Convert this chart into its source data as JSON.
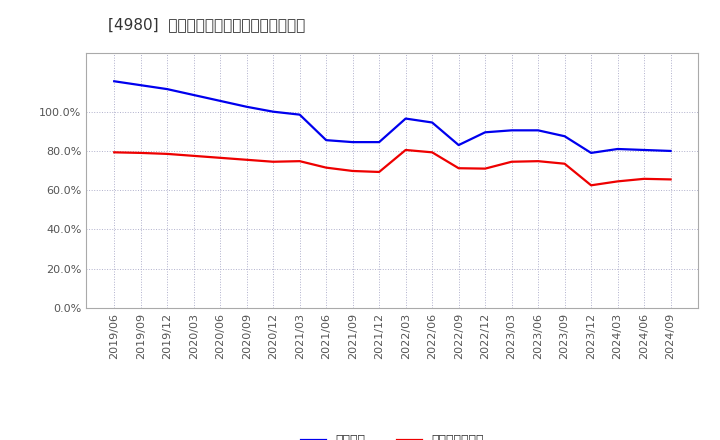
{
  "title": "[4980]  固定比率、固定長期適合率の推移",
  "x_labels": [
    "2019/06",
    "2019/09",
    "2019/12",
    "2020/03",
    "2020/06",
    "2020/09",
    "2020/12",
    "2021/03",
    "2021/06",
    "2021/09",
    "2021/12",
    "2022/03",
    "2022/06",
    "2022/09",
    "2022/12",
    "2023/03",
    "2023/06",
    "2023/09",
    "2023/12",
    "2024/03",
    "2024/06",
    "2024/09"
  ],
  "fixed_ratio": [
    1.155,
    1.135,
    1.115,
    1.085,
    1.055,
    1.025,
    1.0,
    0.985,
    0.855,
    0.845,
    0.845,
    0.965,
    0.945,
    0.83,
    0.895,
    0.905,
    0.905,
    0.875,
    0.79,
    0.81,
    0.805,
    0.8
  ],
  "fixed_long_ratio": [
    0.793,
    0.79,
    0.785,
    0.775,
    0.765,
    0.755,
    0.745,
    0.748,
    0.715,
    0.698,
    0.693,
    0.805,
    0.793,
    0.712,
    0.71,
    0.745,
    0.748,
    0.735,
    0.625,
    0.645,
    0.658,
    0.655
  ],
  "line1_color": "#0000ee",
  "line2_color": "#ee0000",
  "line1_label": "固定比率",
  "line2_label": "固定長期適合率",
  "bg_color": "#ffffff",
  "plot_bg_color": "#ffffff",
  "grid_color": "#b0b0cc",
  "ylim_min": 0.0,
  "ylim_max": 1.3,
  "yticks": [
    0.0,
    0.2,
    0.4,
    0.6,
    0.8,
    1.0
  ],
  "ytick_labels": [
    "0.0%",
    "20.0%",
    "40.0%",
    "60.0%",
    "80.0%",
    "100.0%"
  ],
  "title_fontsize": 11,
  "tick_fontsize": 8,
  "legend_fontsize": 9
}
